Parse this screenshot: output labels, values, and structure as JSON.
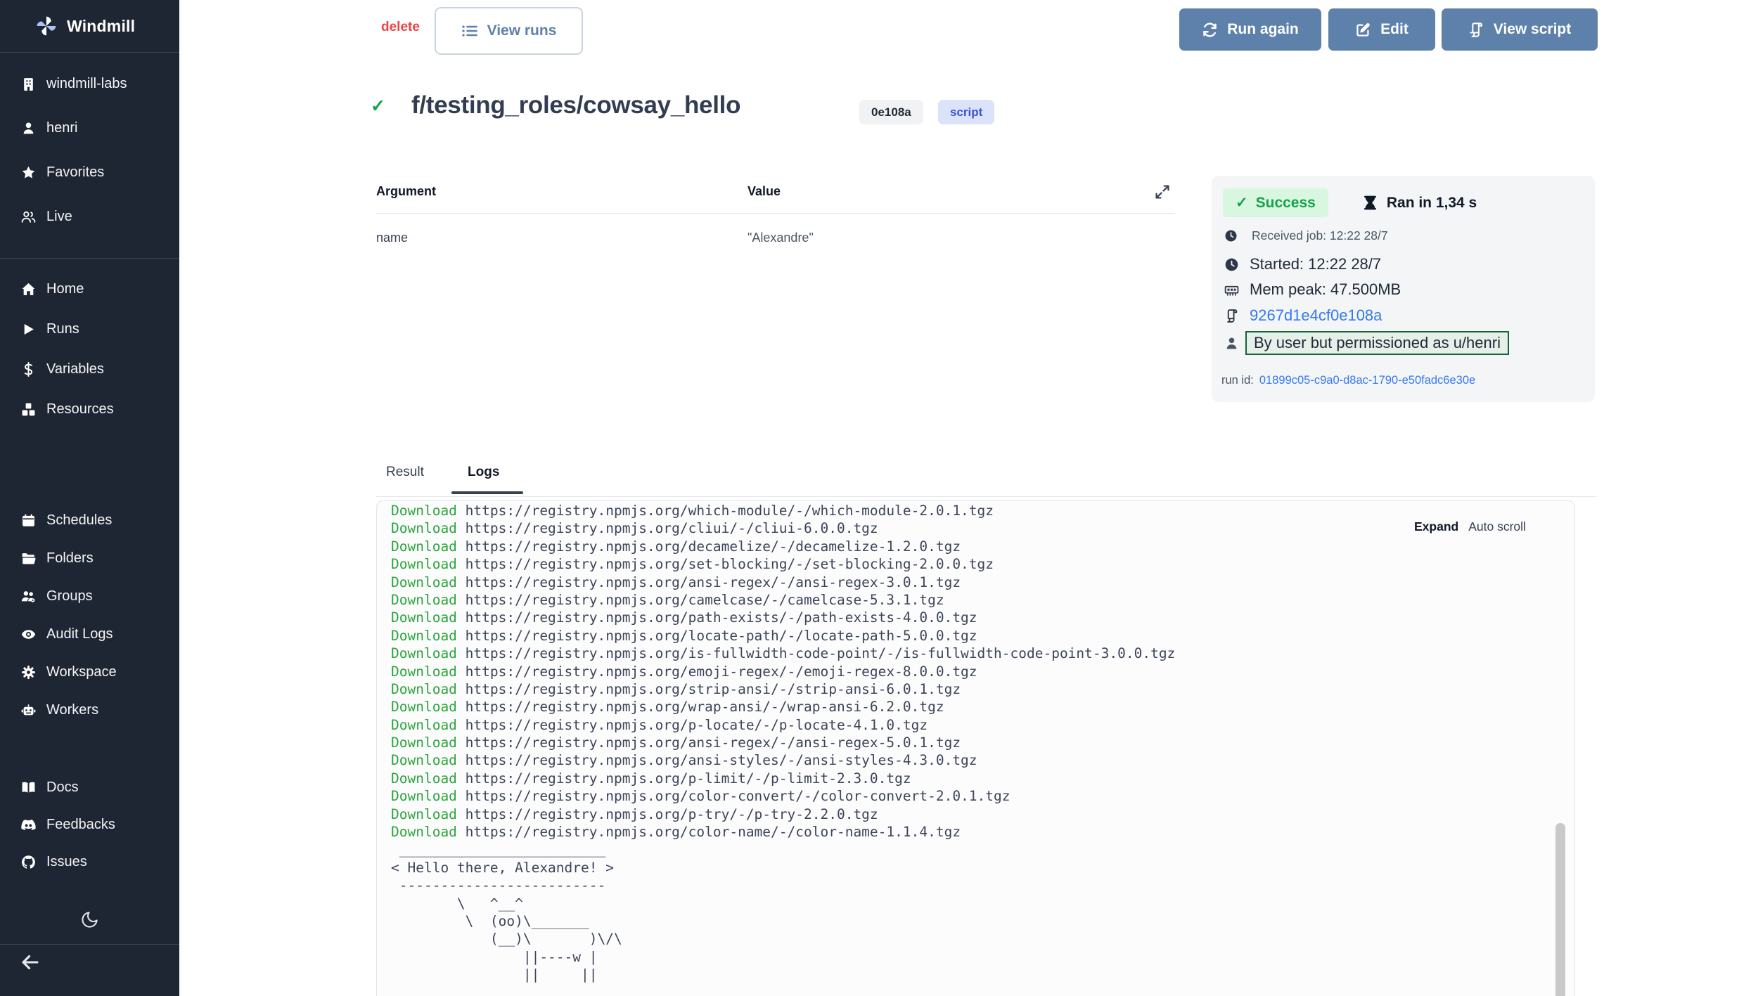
{
  "app": {
    "name": "Windmill",
    "logo_icon": "windmill-logo-icon"
  },
  "sidebar": {
    "workspace_items": [
      {
        "label": "windmill-labs",
        "icon": "building-icon"
      },
      {
        "label": "henri",
        "icon": "user-icon"
      },
      {
        "label": "Favorites",
        "icon": "star-icon"
      },
      {
        "label": "Live",
        "icon": "users-icon"
      }
    ],
    "primary_items": [
      {
        "label": "Home",
        "icon": "home-icon"
      },
      {
        "label": "Runs",
        "icon": "play-icon"
      },
      {
        "label": "Variables",
        "icon": "dollar-icon"
      },
      {
        "label": "Resources",
        "icon": "boxes-icon"
      }
    ],
    "admin_items": [
      {
        "label": "Schedules",
        "icon": "calendar-icon"
      },
      {
        "label": "Folders",
        "icon": "folder-icon"
      },
      {
        "label": "Groups",
        "icon": "group-icon"
      },
      {
        "label": "Audit Logs",
        "icon": "eye-icon"
      },
      {
        "label": "Workspace",
        "icon": "gear-icon"
      },
      {
        "label": "Workers",
        "icon": "robot-icon"
      }
    ],
    "external_items": [
      {
        "label": "Docs",
        "icon": "book-icon"
      },
      {
        "label": "Feedbacks",
        "icon": "discord-icon"
      },
      {
        "label": "Issues",
        "icon": "github-icon"
      }
    ],
    "footer_icons": [
      "moon-icon",
      "arrow-left-icon"
    ]
  },
  "toolbar": {
    "delete_label": "delete",
    "view_runs_label": "View runs",
    "view_runs_icon": "list-icon",
    "run_again_label": "Run again",
    "run_again_icon": "refresh-icon",
    "edit_label": "Edit",
    "edit_icon": "edit-icon",
    "view_script_label": "View script",
    "view_script_icon": "scroll-icon"
  },
  "header": {
    "status_check": "✔",
    "title": "f/testing_roles/cowsay_hello",
    "hash_badge": "0e108a",
    "type_badge": "script"
  },
  "args_table": {
    "columns": [
      "Argument",
      "Value"
    ],
    "expand_icon": "maximize-icon",
    "rows": [
      {
        "argument": "name",
        "value": "\"Alexandre\""
      }
    ]
  },
  "run_info": {
    "status": "Success",
    "status_check": "✓",
    "duration": "Ran in 1,34 s",
    "received": "Received job: 12:22 28/7",
    "started": "Started: 12:22 28/7",
    "mem_peak": "Mem peak: 47.500MB",
    "job_hash": "9267d1e4cf0e108a",
    "permission": "By user but permissioned as u/henri",
    "run_id_label": "run id:",
    "run_id": "01899c05-c9a0-d8ac-1790-e50fadc6e30e"
  },
  "tabs": [
    {
      "label": "Result",
      "active": false
    },
    {
      "label": "Logs",
      "active": true
    }
  ],
  "logs": {
    "expand_label": "Expand",
    "auto_scroll_label": "Auto scroll",
    "download_label": "Download",
    "downloads": [
      "https://registry.npmjs.org/which-module/-/which-module-2.0.1.tgz",
      "https://registry.npmjs.org/cliui/-/cliui-6.0.0.tgz",
      "https://registry.npmjs.org/decamelize/-/decamelize-1.2.0.tgz",
      "https://registry.npmjs.org/set-blocking/-/set-blocking-2.0.0.tgz",
      "https://registry.npmjs.org/ansi-regex/-/ansi-regex-3.0.1.tgz",
      "https://registry.npmjs.org/camelcase/-/camelcase-5.3.1.tgz",
      "https://registry.npmjs.org/path-exists/-/path-exists-4.0.0.tgz",
      "https://registry.npmjs.org/locate-path/-/locate-path-5.0.0.tgz",
      "https://registry.npmjs.org/is-fullwidth-code-point/-/is-fullwidth-code-point-3.0.0.tgz",
      "https://registry.npmjs.org/emoji-regex/-/emoji-regex-8.0.0.tgz",
      "https://registry.npmjs.org/strip-ansi/-/strip-ansi-6.0.1.tgz",
      "https://registry.npmjs.org/wrap-ansi/-/wrap-ansi-6.2.0.tgz",
      "https://registry.npmjs.org/p-locate/-/p-locate-4.1.0.tgz",
      "https://registry.npmjs.org/ansi-regex/-/ansi-regex-5.0.1.tgz",
      "https://registry.npmjs.org/ansi-styles/-/ansi-styles-4.3.0.tgz",
      "https://registry.npmjs.org/p-limit/-/p-limit-2.3.0.tgz",
      "https://registry.npmjs.org/color-convert/-/color-convert-2.0.1.tgz",
      "https://registry.npmjs.org/p-try/-/p-try-2.2.0.tgz",
      "https://registry.npmjs.org/color-name/-/color-name-1.1.4.tgz"
    ],
    "cowsay": [
      " _________________________",
      "< Hello there, Alexandre! >",
      " -------------------------",
      "        \\   ^__^",
      "         \\  (oo)\\_______",
      "            (__)\\       )\\/\\",
      "                ||----w |",
      "                ||     ||"
    ]
  },
  "colors": {
    "sidebar_bg": "#1f2633",
    "accent_blue": "#5e81ab",
    "link_blue": "#3779f0",
    "success_green": "#16a34a",
    "success_bg": "#d9f6e0",
    "delete_red": "#ef4444",
    "log_green": "#2aa53c",
    "perm_border_green": "#15643a",
    "script_badge_bg": "#dbe3fa",
    "script_badge_text": "#3b50d9"
  }
}
